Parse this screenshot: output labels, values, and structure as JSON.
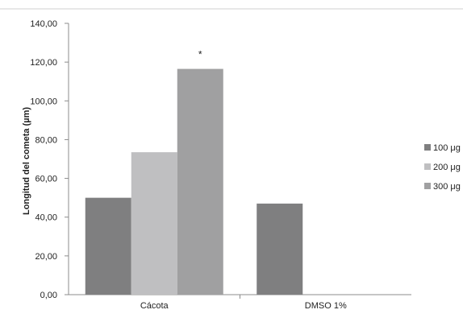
{
  "chart_data": {
    "type": "bar",
    "title": "",
    "xlabel": "",
    "ylabel": "Longitud del cometa (µm)",
    "ylim": [
      0,
      140
    ],
    "yticks": [
      "0,00",
      "20,00",
      "40,00",
      "60,00",
      "80,00",
      "100,00",
      "120,00",
      "140,00"
    ],
    "categories": [
      "Cácota",
      "DMSO 1%"
    ],
    "series": [
      {
        "name": "100 μg",
        "color": "#7f7f80",
        "values": [
          50,
          47
        ]
      },
      {
        "name": "200 μg",
        "color": "#bfbfc1",
        "values": [
          73.5,
          null
        ]
      },
      {
        "name": "300 μg",
        "color": "#a0a0a1",
        "values": [
          116.5,
          null
        ]
      }
    ],
    "annotations": [
      {
        "text": "*",
        "category": 0,
        "series": 2
      }
    ],
    "grid": false,
    "legend": "right"
  }
}
